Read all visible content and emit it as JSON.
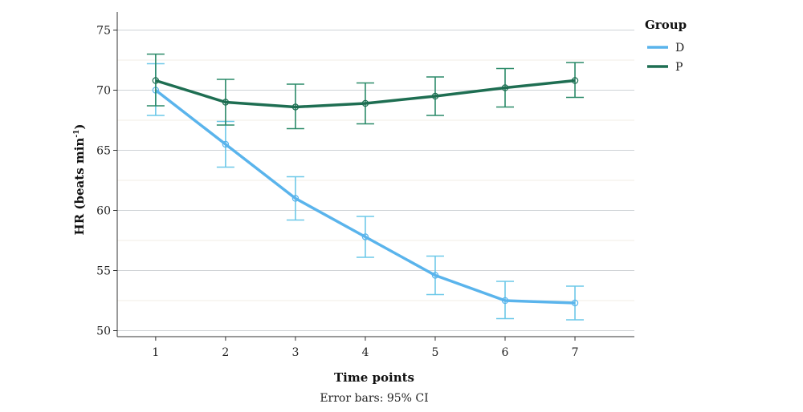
{
  "chart_data": {
    "type": "line",
    "xlabel": "Time points",
    "ylabel": "HR (beats min",
    "ylabel_superscript": "-1",
    "ylabel_close": ")",
    "note": "Error bars: 95% CI",
    "legend_title": "Group",
    "legend_position": "top-right",
    "x": [
      1,
      2,
      3,
      4,
      5,
      6,
      7
    ],
    "xlim": [
      0.45,
      7.85
    ],
    "ylim": [
      49.5,
      76.5
    ],
    "yticks": [
      50,
      55,
      60,
      65,
      70,
      75
    ],
    "grid": "horizontal",
    "series": [
      {
        "name": "D",
        "color": "#5ab4ec",
        "errcolor": "#6cc8e8",
        "values": [
          70.0,
          65.5,
          61.0,
          57.8,
          54.6,
          52.5,
          52.3
        ],
        "lower": [
          67.9,
          63.6,
          59.2,
          56.1,
          53.0,
          51.0,
          50.9
        ],
        "upper": [
          72.2,
          67.4,
          62.8,
          59.5,
          56.2,
          54.1,
          53.7
        ]
      },
      {
        "name": "P",
        "color": "#1e6e52",
        "errcolor": "#2a8a68",
        "values": [
          70.8,
          69.0,
          68.6,
          68.9,
          69.5,
          70.2,
          70.8
        ],
        "lower": [
          68.7,
          67.1,
          66.8,
          67.2,
          67.9,
          68.6,
          69.4
        ],
        "upper": [
          73.0,
          70.9,
          70.5,
          70.6,
          71.1,
          71.8,
          72.3
        ]
      }
    ]
  }
}
